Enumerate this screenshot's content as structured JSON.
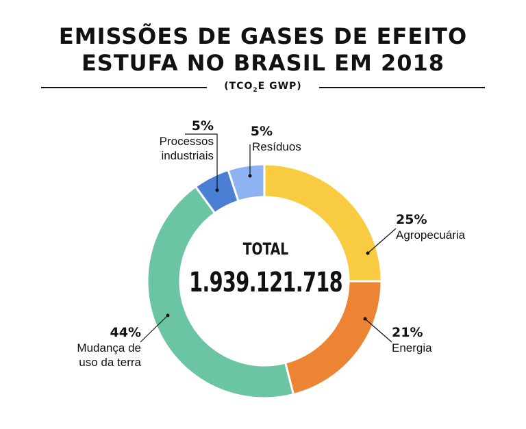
{
  "title": {
    "line1": "EMISSÕES DE GASES DE EFEITO",
    "line2": "ESTUFA NO BRASIL EM 2018"
  },
  "unit": {
    "prefix": "(TCO",
    "sub": "2",
    "suffix": "E GWP)"
  },
  "center": {
    "label": "TOTAL",
    "value": "1.939.121.718"
  },
  "chart_data": {
    "type": "pie",
    "donut": true,
    "title": "EMISSÕES DE GASES DE EFEITO ESTUFA NO BRASIL EM 2018",
    "categories": [
      "Agropecuária",
      "Energia",
      "Mudança de uso da terra",
      "Processos industriais",
      "Resíduos"
    ],
    "values": [
      25,
      21,
      44,
      5,
      5
    ],
    "value_labels": [
      "25%",
      "21%",
      "44%",
      "5%",
      "5%"
    ],
    "colors": [
      "#f9cb40",
      "#ec8433",
      "#6cc5a2",
      "#4a7fd4",
      "#8fb3f2"
    ],
    "total": "1.939.121.718",
    "unit": "tCO2e GWP"
  },
  "labels": {
    "agro": {
      "pct": "25%",
      "line1": "Agropecuária"
    },
    "energia": {
      "pct": "21%",
      "line1": "Energia"
    },
    "mudanca": {
      "pct": "44%",
      "line1": "Mudança de",
      "line2": "uso da terra"
    },
    "processos": {
      "pct": "5%",
      "line1": "Processos",
      "line2": "industriais"
    },
    "residuos": {
      "pct": "5%",
      "line1": "Resíduos"
    }
  }
}
